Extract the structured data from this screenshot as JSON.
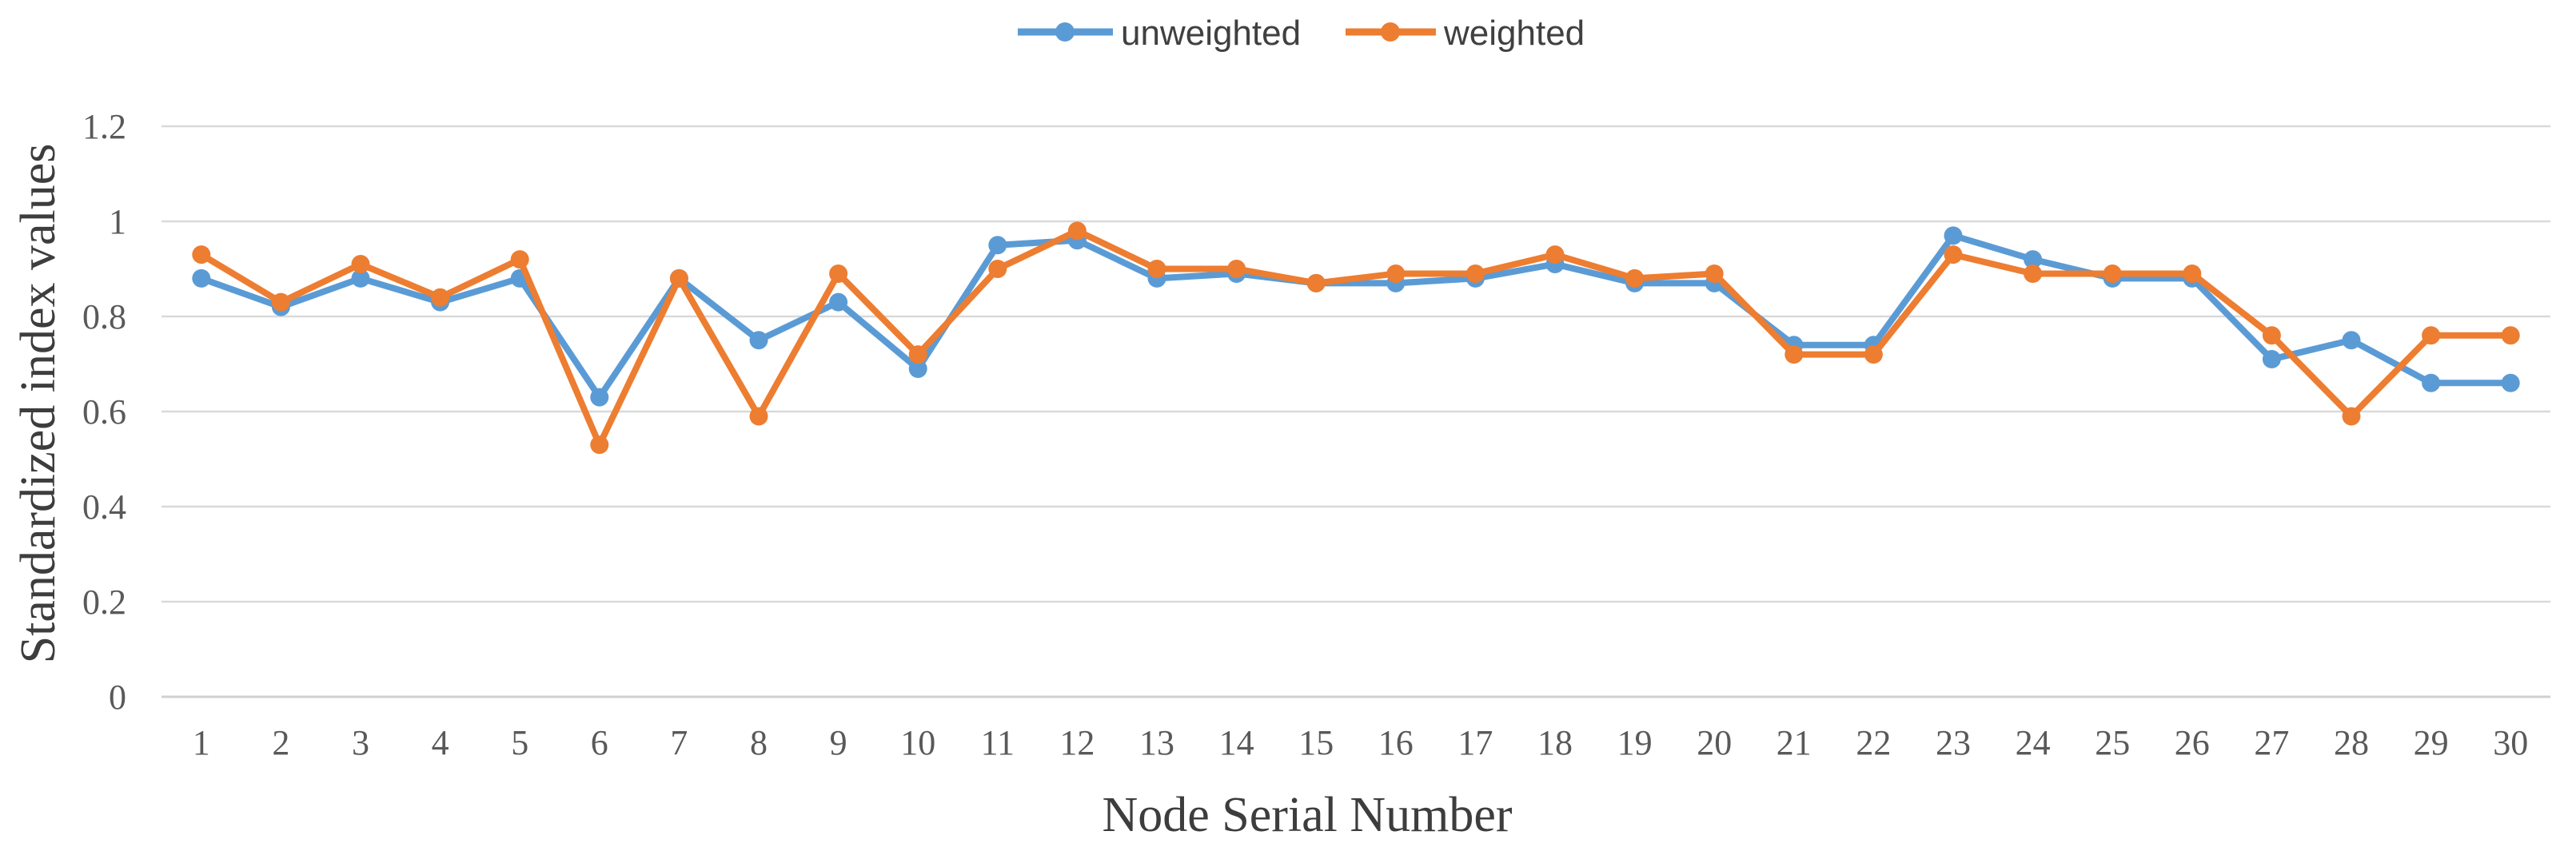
{
  "chart_data": {
    "type": "line",
    "title": "",
    "xlabel": "Node Serial Number",
    "ylabel": "Standardized index values",
    "x": [
      1,
      2,
      3,
      4,
      5,
      6,
      7,
      8,
      9,
      10,
      11,
      12,
      13,
      14,
      15,
      16,
      17,
      18,
      19,
      20,
      21,
      22,
      23,
      24,
      25,
      26,
      27,
      28,
      29,
      30
    ],
    "ylim": [
      0,
      1.2
    ],
    "yticks": [
      0,
      0.2,
      0.4,
      0.6,
      0.8,
      1,
      1.2
    ],
    "ytick_labels": [
      "0",
      "0.2",
      "0.4",
      "0.6",
      "0.8",
      "1",
      "1.2"
    ],
    "grid": true,
    "legend_position": "top-center",
    "marker": "circle",
    "series": [
      {
        "name": "unweighted",
        "color": "#5B9BD5",
        "values": [
          0.88,
          0.82,
          0.88,
          0.83,
          0.88,
          0.63,
          0.88,
          0.75,
          0.83,
          0.69,
          0.95,
          0.96,
          0.88,
          0.89,
          0.87,
          0.87,
          0.88,
          0.91,
          0.87,
          0.87,
          0.74,
          0.74,
          0.97,
          0.92,
          0.88,
          0.88,
          0.71,
          0.75,
          0.66,
          0.66
        ]
      },
      {
        "name": "weighted",
        "color": "#ED7D31",
        "values": [
          0.93,
          0.83,
          0.91,
          0.84,
          0.92,
          0.53,
          0.88,
          0.59,
          0.89,
          0.72,
          0.9,
          0.98,
          0.9,
          0.9,
          0.87,
          0.89,
          0.89,
          0.93,
          0.88,
          0.89,
          0.72,
          0.72,
          0.93,
          0.89,
          0.89,
          0.89,
          0.76,
          0.59,
          0.76,
          0.76
        ]
      }
    ]
  },
  "colors": {
    "unweighted": "#5B9BD5",
    "weighted": "#ED7D31",
    "gridline": "#d9d9d9",
    "tick_text": "#595959",
    "title_text": "#3d3d3d",
    "background": "#ffffff"
  }
}
